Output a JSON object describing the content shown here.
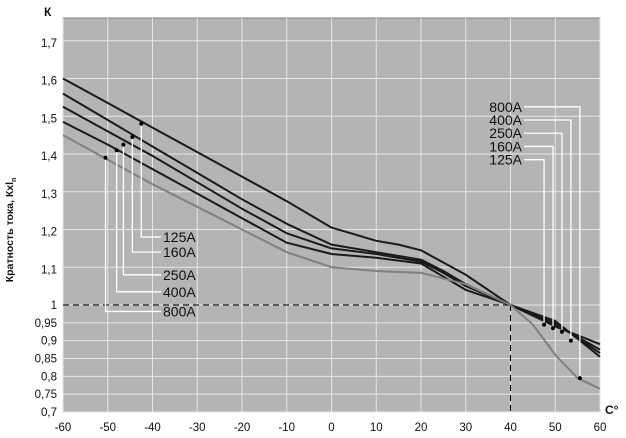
{
  "chart_data": {
    "type": "line",
    "ylabel": "Кратность тока, Кхl",
    "ylabel_subscript": "n",
    "ylabel_unit": "К",
    "xlabel_unit": "С°",
    "xlim": [
      -60,
      60
    ],
    "x_ticks": [
      -60,
      -50,
      -40,
      -30,
      -20,
      -10,
      0,
      10,
      20,
      30,
      40,
      50,
      60
    ],
    "x_tick_labels": [
      "-60",
      "-50",
      "-40",
      "-30",
      "-20",
      "-10",
      "0",
      "10",
      "20",
      "30",
      "40",
      "50",
      "60"
    ],
    "y_ticks": [
      0.7,
      0.75,
      0.8,
      0.85,
      0.9,
      0.95,
      1.0,
      1.1,
      1.2,
      1.3,
      1.4,
      1.5,
      1.6,
      1.7
    ],
    "y_tick_labels": [
      "0,7",
      "0,75",
      "0,8",
      "0,85",
      "0,9",
      "0,95",
      "1",
      "1,1",
      "1,2",
      "1,3",
      "1,4",
      "1,5",
      "1,6",
      "1,7"
    ],
    "y_extra_gridlines": [
      1.8
    ],
    "grid": true,
    "reference_point": {
      "x": 40,
      "y": 1.0
    },
    "series": [
      {
        "name": "800A",
        "color": "#1a1a1a",
        "x": [
          -60,
          -50,
          -40,
          -30,
          -20,
          -10,
          0,
          10,
          15,
          20,
          30,
          40,
          50,
          60
        ],
        "y": [
          1.6,
          1.535,
          1.47,
          1.405,
          1.34,
          1.275,
          1.205,
          1.17,
          1.16,
          1.145,
          1.08,
          1.0,
          0.94,
          0.89
        ]
      },
      {
        "name": "400A",
        "color": "#1a1a1a",
        "x": [
          -60,
          -50,
          -40,
          -30,
          -20,
          -10,
          0,
          10,
          20,
          25,
          30,
          40,
          50,
          60
        ],
        "y": [
          1.56,
          1.49,
          1.42,
          1.35,
          1.28,
          1.215,
          1.16,
          1.14,
          1.12,
          1.09,
          1.055,
          1.0,
          0.945,
          0.875
        ]
      },
      {
        "name": "250A",
        "color": "#1a1a1a",
        "x": [
          -60,
          -50,
          -40,
          -30,
          -20,
          -10,
          0,
          10,
          20,
          25,
          30,
          40,
          50,
          60
        ],
        "y": [
          1.525,
          1.46,
          1.395,
          1.325,
          1.255,
          1.19,
          1.15,
          1.135,
          1.115,
          1.085,
          1.05,
          1.0,
          0.95,
          0.865
        ]
      },
      {
        "name": "160A",
        "color": "#1a1a1a",
        "x": [
          -60,
          -50,
          -40,
          -30,
          -20,
          -10,
          0,
          10,
          20,
          25,
          30,
          40,
          50,
          60
        ],
        "y": [
          1.485,
          1.425,
          1.36,
          1.295,
          1.23,
          1.165,
          1.135,
          1.125,
          1.11,
          1.075,
          1.04,
          1.0,
          0.955,
          0.855
        ]
      },
      {
        "name": "125A",
        "color": "#808080",
        "x": [
          -60,
          -50,
          -40,
          -30,
          -20,
          -10,
          0,
          10,
          20,
          30,
          40,
          45,
          50,
          55,
          60
        ],
        "y": [
          1.45,
          1.385,
          1.32,
          1.26,
          1.2,
          1.14,
          1.1,
          1.09,
          1.085,
          1.055,
          1.0,
          0.945,
          0.86,
          0.795,
          0.765
        ]
      }
    ],
    "left_labels": [
      {
        "text": "125A",
        "anchor": {
          "x": -42.5,
          "y": 1.48
        },
        "label_y": 1.18
      },
      {
        "text": "160A",
        "anchor": {
          "x": -44.5,
          "y": 1.445
        },
        "label_y": 1.14
      },
      {
        "text": "250A",
        "anchor": {
          "x": -46.5,
          "y": 1.425
        },
        "label_y": 1.08
      },
      {
        "text": "400A",
        "anchor": {
          "x": -48.0,
          "y": 1.41
        },
        "label_y": 1.035
      },
      {
        "text": "800A",
        "anchor": {
          "x": -50.5,
          "y": 1.39
        },
        "label_y": 0.982
      }
    ],
    "right_labels": [
      {
        "text": "800A",
        "anchor": {
          "x": 55.5,
          "y": 0.795
        },
        "label_y": 1.525
      },
      {
        "text": "400A",
        "anchor": {
          "x": 53.5,
          "y": 0.9
        },
        "label_y": 1.49
      },
      {
        "text": "250A",
        "anchor": {
          "x": 51.5,
          "y": 0.925
        },
        "label_y": 1.455
      },
      {
        "text": "160A",
        "anchor": {
          "x": 49.5,
          "y": 0.935
        },
        "label_y": 1.42
      },
      {
        "text": "125A",
        "anchor": {
          "x": 47.5,
          "y": 0.945
        },
        "label_y": 1.385
      }
    ]
  }
}
